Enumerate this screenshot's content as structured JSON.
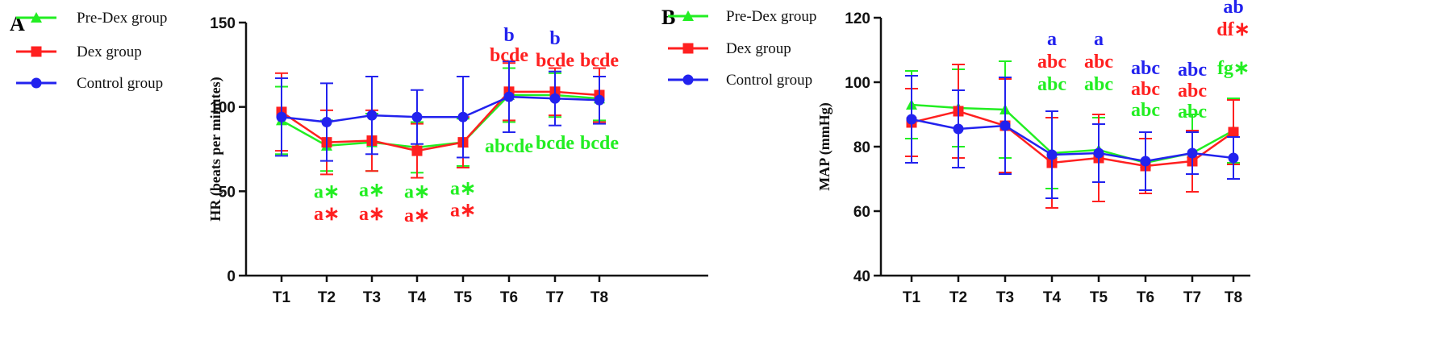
{
  "colors": {
    "pre_dex": "#22ee22",
    "dex": "#ff2020",
    "control": "#2222ee",
    "axis": "#111111"
  },
  "chart_data": [
    {
      "panel": "A",
      "type": "line",
      "ylabel": "HR (beats per minutes)",
      "xlabel": "",
      "categories": [
        "T1",
        "T2",
        "T3",
        "T4",
        "T5",
        "T6",
        "T7",
        "T8"
      ],
      "ylim": [
        0,
        150
      ],
      "yticks": [
        0,
        50,
        100,
        150
      ],
      "legend_position": "top-left",
      "grid": false,
      "series": [
        {
          "name": "Pre-Dex group",
          "marker": "triangle",
          "color": "#22ee22",
          "values": [
            92,
            77,
            79,
            76,
            79,
            107,
            107,
            105
          ],
          "errors": [
            20,
            15,
            17,
            15,
            14,
            16,
            13,
            13
          ]
        },
        {
          "name": "Dex group",
          "marker": "square",
          "color": "#ff2020",
          "values": [
            97,
            79,
            80,
            74,
            79,
            109,
            109,
            107
          ],
          "errors": [
            23,
            19,
            18,
            16,
            15,
            17,
            14,
            16
          ]
        },
        {
          "name": "Control group",
          "marker": "circle",
          "color": "#2222ee",
          "values": [
            94,
            91,
            95,
            94,
            94,
            106,
            105,
            104
          ],
          "errors": [
            23,
            23,
            23,
            16,
            24,
            21,
            16,
            14
          ]
        }
      ],
      "annotations": [
        {
          "category": "T2",
          "text": "a∗",
          "color": "#22ee22",
          "y": 46
        },
        {
          "category": "T2",
          "text": "a∗",
          "color": "#ff2020",
          "y": 33
        },
        {
          "category": "T3",
          "text": "a∗",
          "color": "#22ee22",
          "y": 47
        },
        {
          "category": "T3",
          "text": "a∗",
          "color": "#ff2020",
          "y": 33
        },
        {
          "category": "T4",
          "text": "a∗",
          "color": "#22ee22",
          "y": 46
        },
        {
          "category": "T4",
          "text": "a∗",
          "color": "#ff2020",
          "y": 32
        },
        {
          "category": "T5",
          "text": "a∗",
          "color": "#22ee22",
          "y": 48
        },
        {
          "category": "T5",
          "text": "a∗",
          "color": "#ff2020",
          "y": 35
        },
        {
          "category": "T6",
          "text": "b",
          "color": "#2222ee",
          "y": 139
        },
        {
          "category": "T6",
          "text": "bcde",
          "color": "#ff2020",
          "y": 127
        },
        {
          "category": "T6",
          "text": "abcde",
          "color": "#22ee22",
          "y": 73
        },
        {
          "category": "T7",
          "text": "b",
          "color": "#2222ee",
          "y": 137
        },
        {
          "category": "T7",
          "text": "bcde",
          "color": "#ff2020",
          "y": 124
        },
        {
          "category": "T7",
          "text": "bcde",
          "color": "#22ee22",
          "y": 75
        },
        {
          "category": "T8",
          "text": "bcde",
          "color": "#ff2020",
          "y": 124
        },
        {
          "category": "T8",
          "text": "bcde",
          "color": "#22ee22",
          "y": 75
        }
      ]
    },
    {
      "panel": "B",
      "type": "line",
      "ylabel": "MAP (mmHg)",
      "xlabel": "",
      "categories": [
        "T1",
        "T2",
        "T3",
        "T4",
        "T5",
        "T6",
        "T7",
        "T8"
      ],
      "ylim": [
        40,
        120
      ],
      "yticks": [
        40,
        60,
        80,
        100,
        120
      ],
      "legend_position": "top-left",
      "grid": false,
      "series": [
        {
          "name": "Pre-Dex group",
          "marker": "triangle",
          "color": "#22ee22",
          "values": [
            93,
            92,
            91.5,
            78,
            79,
            75,
            78,
            85
          ],
          "errors": [
            10.5,
            12,
            15,
            11,
            10,
            9.5,
            12,
            10
          ]
        },
        {
          "name": "Dex group",
          "marker": "square",
          "color": "#ff2020",
          "values": [
            87.5,
            91,
            86.5,
            75,
            76.5,
            74,
            75.5,
            84.5
          ],
          "errors": [
            10.5,
            14.5,
            14.5,
            14,
            13.5,
            8.5,
            9.5,
            10
          ]
        },
        {
          "name": "Control group",
          "marker": "circle",
          "color": "#2222ee",
          "values": [
            88.5,
            85.5,
            86.5,
            77.5,
            78,
            75.5,
            78,
            76.5
          ],
          "errors": [
            13.5,
            12,
            15,
            13.5,
            9,
            9,
            6.5,
            6.5
          ]
        }
      ],
      "annotations": [
        {
          "category": "T4",
          "text": "a",
          "color": "#2222ee",
          "y": 111.5
        },
        {
          "category": "T4",
          "text": "abc",
          "color": "#ff2020",
          "y": 104.5
        },
        {
          "category": "T4",
          "text": "abc",
          "color": "#22ee22",
          "y": 97.5
        },
        {
          "category": "T5",
          "text": "a",
          "color": "#2222ee",
          "y": 111.5
        },
        {
          "category": "T5",
          "text": "abc",
          "color": "#ff2020",
          "y": 104.5
        },
        {
          "category": "T5",
          "text": "abc",
          "color": "#22ee22",
          "y": 97.5
        },
        {
          "category": "T6",
          "text": "abc",
          "color": "#2222ee",
          "y": 102.5
        },
        {
          "category": "T6",
          "text": "abc",
          "color": "#ff2020",
          "y": 96
        },
        {
          "category": "T6",
          "text": "abc",
          "color": "#22ee22",
          "y": 89.5
        },
        {
          "category": "T7",
          "text": "abc",
          "color": "#2222ee",
          "y": 102
        },
        {
          "category": "T7",
          "text": "abc",
          "color": "#ff2020",
          "y": 95.5
        },
        {
          "category": "T7",
          "text": "abc",
          "color": "#22ee22",
          "y": 89
        },
        {
          "category": "T8",
          "text": "ab",
          "color": "#2222ee",
          "y": 121.5
        },
        {
          "category": "T8",
          "text": "df∗",
          "color": "#ff2020",
          "y": 114.5
        },
        {
          "category": "T8",
          "text": "fg∗",
          "color": "#22ee22",
          "y": 102.5
        }
      ]
    }
  ]
}
